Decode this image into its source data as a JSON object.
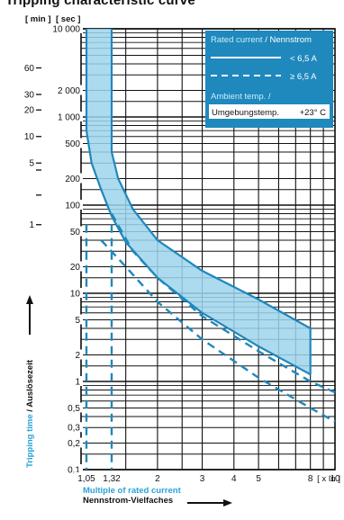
{
  "chart_data": {
    "type": "line",
    "title": "Tripping characteristic curve",
    "unit_labels": {
      "min": "[ min ]",
      "sec": "[ sec ]"
    },
    "xlabel": {
      "en": "Multiple of rated current",
      "de": "Nennstrom-Vielfaches"
    },
    "xunit": "[ x In ]",
    "ylabel": {
      "en": "Tripping time",
      "de": "Auslösezeit"
    },
    "xscale": "log",
    "yscale": "log",
    "xlim": [
      1,
      10
    ],
    "ylim": [
      0.1,
      10000
    ],
    "x_ticks": [
      {
        "value": 1.05,
        "label": "1,05"
      },
      {
        "value": 1.32,
        "label": "1,32"
      },
      {
        "value": 2,
        "label": "2"
      },
      {
        "value": 3,
        "label": "3"
      },
      {
        "value": 4,
        "label": "4"
      },
      {
        "value": 5,
        "label": "5"
      },
      {
        "value": 8,
        "label": "8"
      },
      {
        "value": 10,
        "label": "10"
      }
    ],
    "sec_ticks": [
      {
        "value": 10000,
        "label": "10 000"
      },
      {
        "value": 2000,
        "label": "2 000"
      },
      {
        "value": 1000,
        "label": "1 000"
      },
      {
        "value": 500,
        "label": "500"
      },
      {
        "value": 200,
        "label": "200"
      },
      {
        "value": 100,
        "label": "100"
      },
      {
        "value": 50,
        "label": "50"
      },
      {
        "value": 20,
        "label": "20"
      },
      {
        "value": 10,
        "label": "10"
      },
      {
        "value": 5,
        "label": "5"
      },
      {
        "value": 2,
        "label": "2"
      },
      {
        "value": 1,
        "label": "1"
      },
      {
        "value": 0.5,
        "label": "0,5"
      },
      {
        "value": 0.3,
        "label": "0,3"
      },
      {
        "value": 0.2,
        "label": "0,2"
      },
      {
        "value": 0.1,
        "label": "0,1"
      }
    ],
    "min_ticks": [
      {
        "value": 3600,
        "label": "60"
      },
      {
        "value": 1800,
        "label": "30"
      },
      {
        "value": 1200,
        "label": "20"
      },
      {
        "value": 600,
        "label": "10"
      },
      {
        "value": 300,
        "label": "5"
      },
      {
        "value": 60,
        "label": "1"
      }
    ],
    "legend": {
      "title_en": "Rated current",
      "title_de": "Nennstrom",
      "separator": " / ",
      "items": [
        {
          "label": "< 6,5 A",
          "style": "solid"
        },
        {
          "label": "≥ 6,5 A",
          "style": "dashed"
        }
      ],
      "ambient_en": "Ambient temp. /",
      "ambient_de": "Umgebungstemp.",
      "ambient_value": "+23° C"
    },
    "series": [
      {
        "style": "solid",
        "band_left": {
          "x": [
            1.05,
            1.05,
            1.1,
            1.2,
            1.32,
            1.5,
            2.0,
            3.0,
            5.0,
            8.0
          ],
          "y": [
            10000,
            700,
            300,
            150,
            75,
            38,
            15,
            6,
            2.5,
            1.2
          ]
        },
        "band_right": {
          "x": [
            1.32,
            1.32,
            1.4,
            1.6,
            2.0,
            3.0,
            5.0,
            8.0
          ],
          "y": [
            10000,
            400,
            200,
            90,
            40,
            18,
            8.5,
            4
          ]
        },
        "x_end": 8
      },
      {
        "style": "dashed",
        "band_left": {
          "x": [
            1.2,
            1.5,
            2.0,
            3.0,
            5.0,
            8.0,
            10.0
          ],
          "y": [
            40,
            20,
            8,
            3,
            1.1,
            0.5,
            0.35
          ]
        },
        "band_right": {
          "x": [
            1.32,
            1.6,
            2.0,
            3.0,
            5.0,
            8.0,
            10.0
          ],
          "y": [
            80,
            30,
            15,
            5.5,
            2.2,
            1.0,
            0.75
          ]
        },
        "verticals": [
          1.05,
          1.32
        ]
      }
    ],
    "colors": {
      "band_fill": "#9dd5ec",
      "band_stroke": "#1f88bd",
      "accent_text": "#29a3d6",
      "legend_bg": "#1f88bd",
      "legend_text": "#ffffff",
      "grid": "#111111"
    }
  }
}
